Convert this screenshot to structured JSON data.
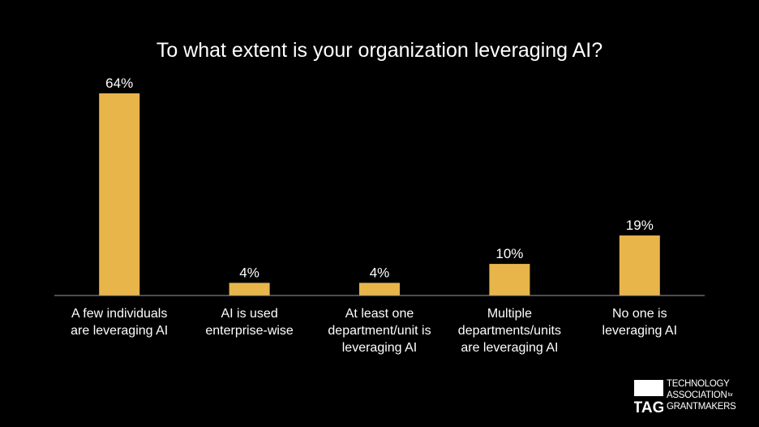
{
  "colors": {
    "background": "#000000",
    "bar": "#E8B54A",
    "text": "#FFFFFF",
    "axis": "#9A9A9A"
  },
  "chart_data": {
    "type": "bar",
    "title": "To what extent is your organization leveraging AI?",
    "categories": [
      [
        "A few individuals",
        "are leveraging AI"
      ],
      [
        "AI is used",
        "enterprise-wise"
      ],
      [
        "At least one",
        "department/unit is",
        "leveraging AI"
      ],
      [
        "Multiple",
        "departments/units",
        "are leveraging AI"
      ],
      [
        "No one is",
        "leveraging AI"
      ]
    ],
    "values": [
      64,
      4,
      4,
      10,
      19
    ],
    "data_labels": [
      "64%",
      "4%",
      "4%",
      "10%",
      "19%"
    ],
    "ylim": [
      0,
      64
    ],
    "grid": false,
    "legend": "none"
  },
  "logo": {
    "mark": "TAG",
    "lines": [
      "TECHNOLOGY",
      "ASSOCIATION",
      "GRANTMAKERS"
    ],
    "for": "for"
  }
}
